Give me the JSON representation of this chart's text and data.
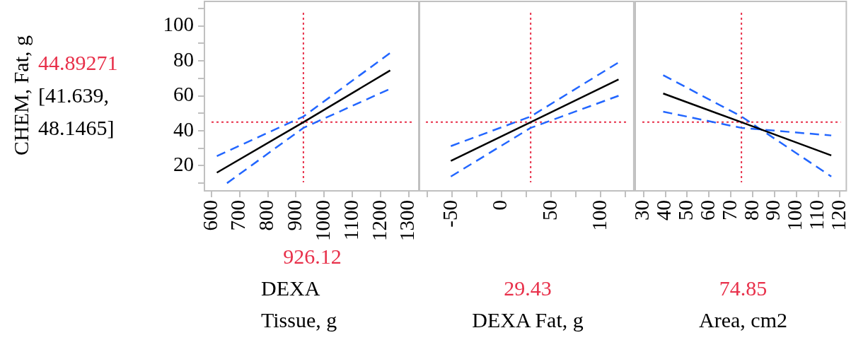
{
  "chart_data": [
    {
      "type": "line",
      "ylabel": "CHEM, Fat, g",
      "xlabel": "DEXA\nTissue, g",
      "annotations": [
        "[41.639, 48.1465]"
      ],
      "marker": "none",
      "xlim": [
        575,
        1338
      ],
      "xticks": [
        600,
        700,
        800,
        900,
        1000,
        1100,
        1200,
        1300
      ],
      "ylim": [
        5.6,
        114
      ],
      "yticks": [
        {
          "value": 10,
          "label": null
        },
        20,
        {
          "value": 30,
          "label": null
        },
        40,
        {
          "value": 50,
          "label": null
        },
        60,
        {
          "value": 70,
          "label": null
        },
        80,
        {
          "value": 90,
          "label": null
        },
        100,
        {
          "value": 110,
          "label": null
        }
      ],
      "series": [
        {
          "color": "#000000",
          "line_style": "solid",
          "x": [
            619,
            926.12,
            1234
          ],
          "values": [
            16,
            44.89271,
            74.5
          ]
        },
        {
          "color": "#2266ff",
          "line_style": "dashed",
          "x": [
            619,
            926.12,
            1234
          ],
          "values": [
            25.5,
            48.1465,
            84.5
          ]
        },
        {
          "color": "#2266ff",
          "line_style": "dashed",
          "x": [
            655,
            926.12,
            1234
          ],
          "values": [
            10,
            41.639,
            64
          ]
        }
      ],
      "ref_lines": [
        {
          "axis": "x",
          "value": 926.12,
          "label": "926.12",
          "color": "#e8304a",
          "line_style": "dotted"
        },
        {
          "axis": "y",
          "value": 44.89271,
          "label": "44.89271",
          "color": "#e8304a",
          "line_style": "dotted"
        }
      ]
    },
    {
      "type": "line",
      "xlabel": "DEXA Fat, g",
      "marker": "none",
      "tick_labels": "x",
      "xlim": [
        -83.3,
        133.3
      ],
      "xticks": [
        {
          "value": -75,
          "label": null
        },
        -50,
        {
          "value": -25,
          "label": null
        },
        0,
        {
          "value": 25,
          "label": null
        },
        50,
        {
          "value": 75,
          "label": null
        },
        100,
        {
          "value": 125,
          "label": null
        }
      ],
      "ylim": [
        5.6,
        114
      ],
      "series": [
        {
          "color": "#000000",
          "line_style": "solid",
          "x": [
            -51,
            29.43,
            118
          ],
          "values": [
            22.7,
            44.89271,
            69.4
          ]
        },
        {
          "color": "#2266ff",
          "line_style": "dashed",
          "x": [
            -51,
            29.43,
            118
          ],
          "values": [
            31.2,
            48.1465,
            79.1
          ]
        },
        {
          "color": "#2266ff",
          "line_style": "dashed",
          "x": [
            -51,
            29.43,
            118
          ],
          "values": [
            13.8,
            41.639,
            60
          ]
        }
      ],
      "ref_lines": [
        {
          "axis": "x",
          "value": 29.43,
          "label": "29.43",
          "color": "#e8304a",
          "line_style": "dotted"
        },
        {
          "axis": "y",
          "value": 44.89271,
          "color": "#e8304a",
          "line_style": "dotted"
        }
      ]
    },
    {
      "type": "line",
      "xlabel": "Area, cm2",
      "marker": "none",
      "tick_labels": "x",
      "xlim": [
        26.2,
        122.9
      ],
      "xticks": [
        30,
        40,
        50,
        60,
        70,
        80,
        90,
        100,
        110,
        120
      ],
      "ylim": [
        5.6,
        114
      ],
      "series": [
        {
          "color": "#000000",
          "line_style": "solid",
          "x": [
            39,
            74.85,
            116
          ],
          "values": [
            61.3,
            44.89271,
            25.9
          ]
        },
        {
          "color": "#2266ff",
          "line_style": "dashed",
          "x": [
            39,
            74.85,
            116
          ],
          "values": [
            71.8,
            48.1465,
            13.8
          ]
        },
        {
          "color": "#2266ff",
          "line_style": "dashed",
          "x": [
            39,
            74.85,
            116
          ],
          "values": [
            50.9,
            41.639,
            37.3
          ]
        }
      ],
      "ref_lines": [
        {
          "axis": "x",
          "value": 74.85,
          "label": "74.85",
          "color": "#e8304a",
          "line_style": "dotted"
        },
        {
          "axis": "y",
          "value": 44.89271,
          "color": "#e8304a",
          "line_style": "dotted"
        }
      ]
    }
  ]
}
